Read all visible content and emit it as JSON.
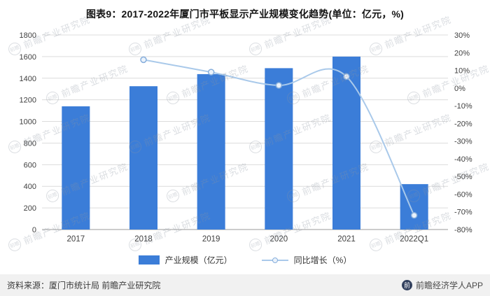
{
  "title": "图表9：2017-2022年厦门市平板显示产业规模变化趋势(单位：亿元，%)",
  "chart_data": {
    "type": "bar+line combo",
    "title": "图表9：2017-2022年厦门市平板显示产业规模变化趋势(单位：亿元，%)",
    "categories": [
      "2017",
      "2018",
      "2019",
      "2020",
      "2021",
      "2022Q1"
    ],
    "series": [
      {
        "name": "产业规模（亿元）",
        "type": "bar",
        "axis": "left",
        "values": [
          1140,
          1326,
          1438,
          1493,
          1600,
          420
        ]
      },
      {
        "name": "同比增长（%）",
        "type": "line",
        "axis": "right",
        "values": [
          null,
          16,
          9,
          1.5,
          6.5,
          -72
        ]
      }
    ],
    "left_axis": {
      "min": 0,
      "max": 1800,
      "step": 200
    },
    "right_axis": {
      "min": -80,
      "max": 30,
      "step": 10,
      "suffix": "%"
    },
    "grid": true,
    "legend_position": "bottom"
  },
  "legend": {
    "bar_label": "产业规模（亿元）",
    "line_label": "同比增长（%）"
  },
  "watermark": {
    "text": "前瞻产业研究院",
    "logo_text": "前瞻"
  },
  "footer": {
    "source": "资料来源：厦门市统计局 前瞻产业研究院",
    "brand": "前瞻经济学人APP",
    "brand_icon_text": "前"
  },
  "colors": {
    "bar": "#3B7DD8",
    "line": "#A9C9EA",
    "marker_fill": "#EAF2FB",
    "marker_stroke": "#86AEDC",
    "grid": "#DCDCDC",
    "axis_line": "#9A9A9A",
    "axis_text": "#404040",
    "title_text": "#141414"
  }
}
